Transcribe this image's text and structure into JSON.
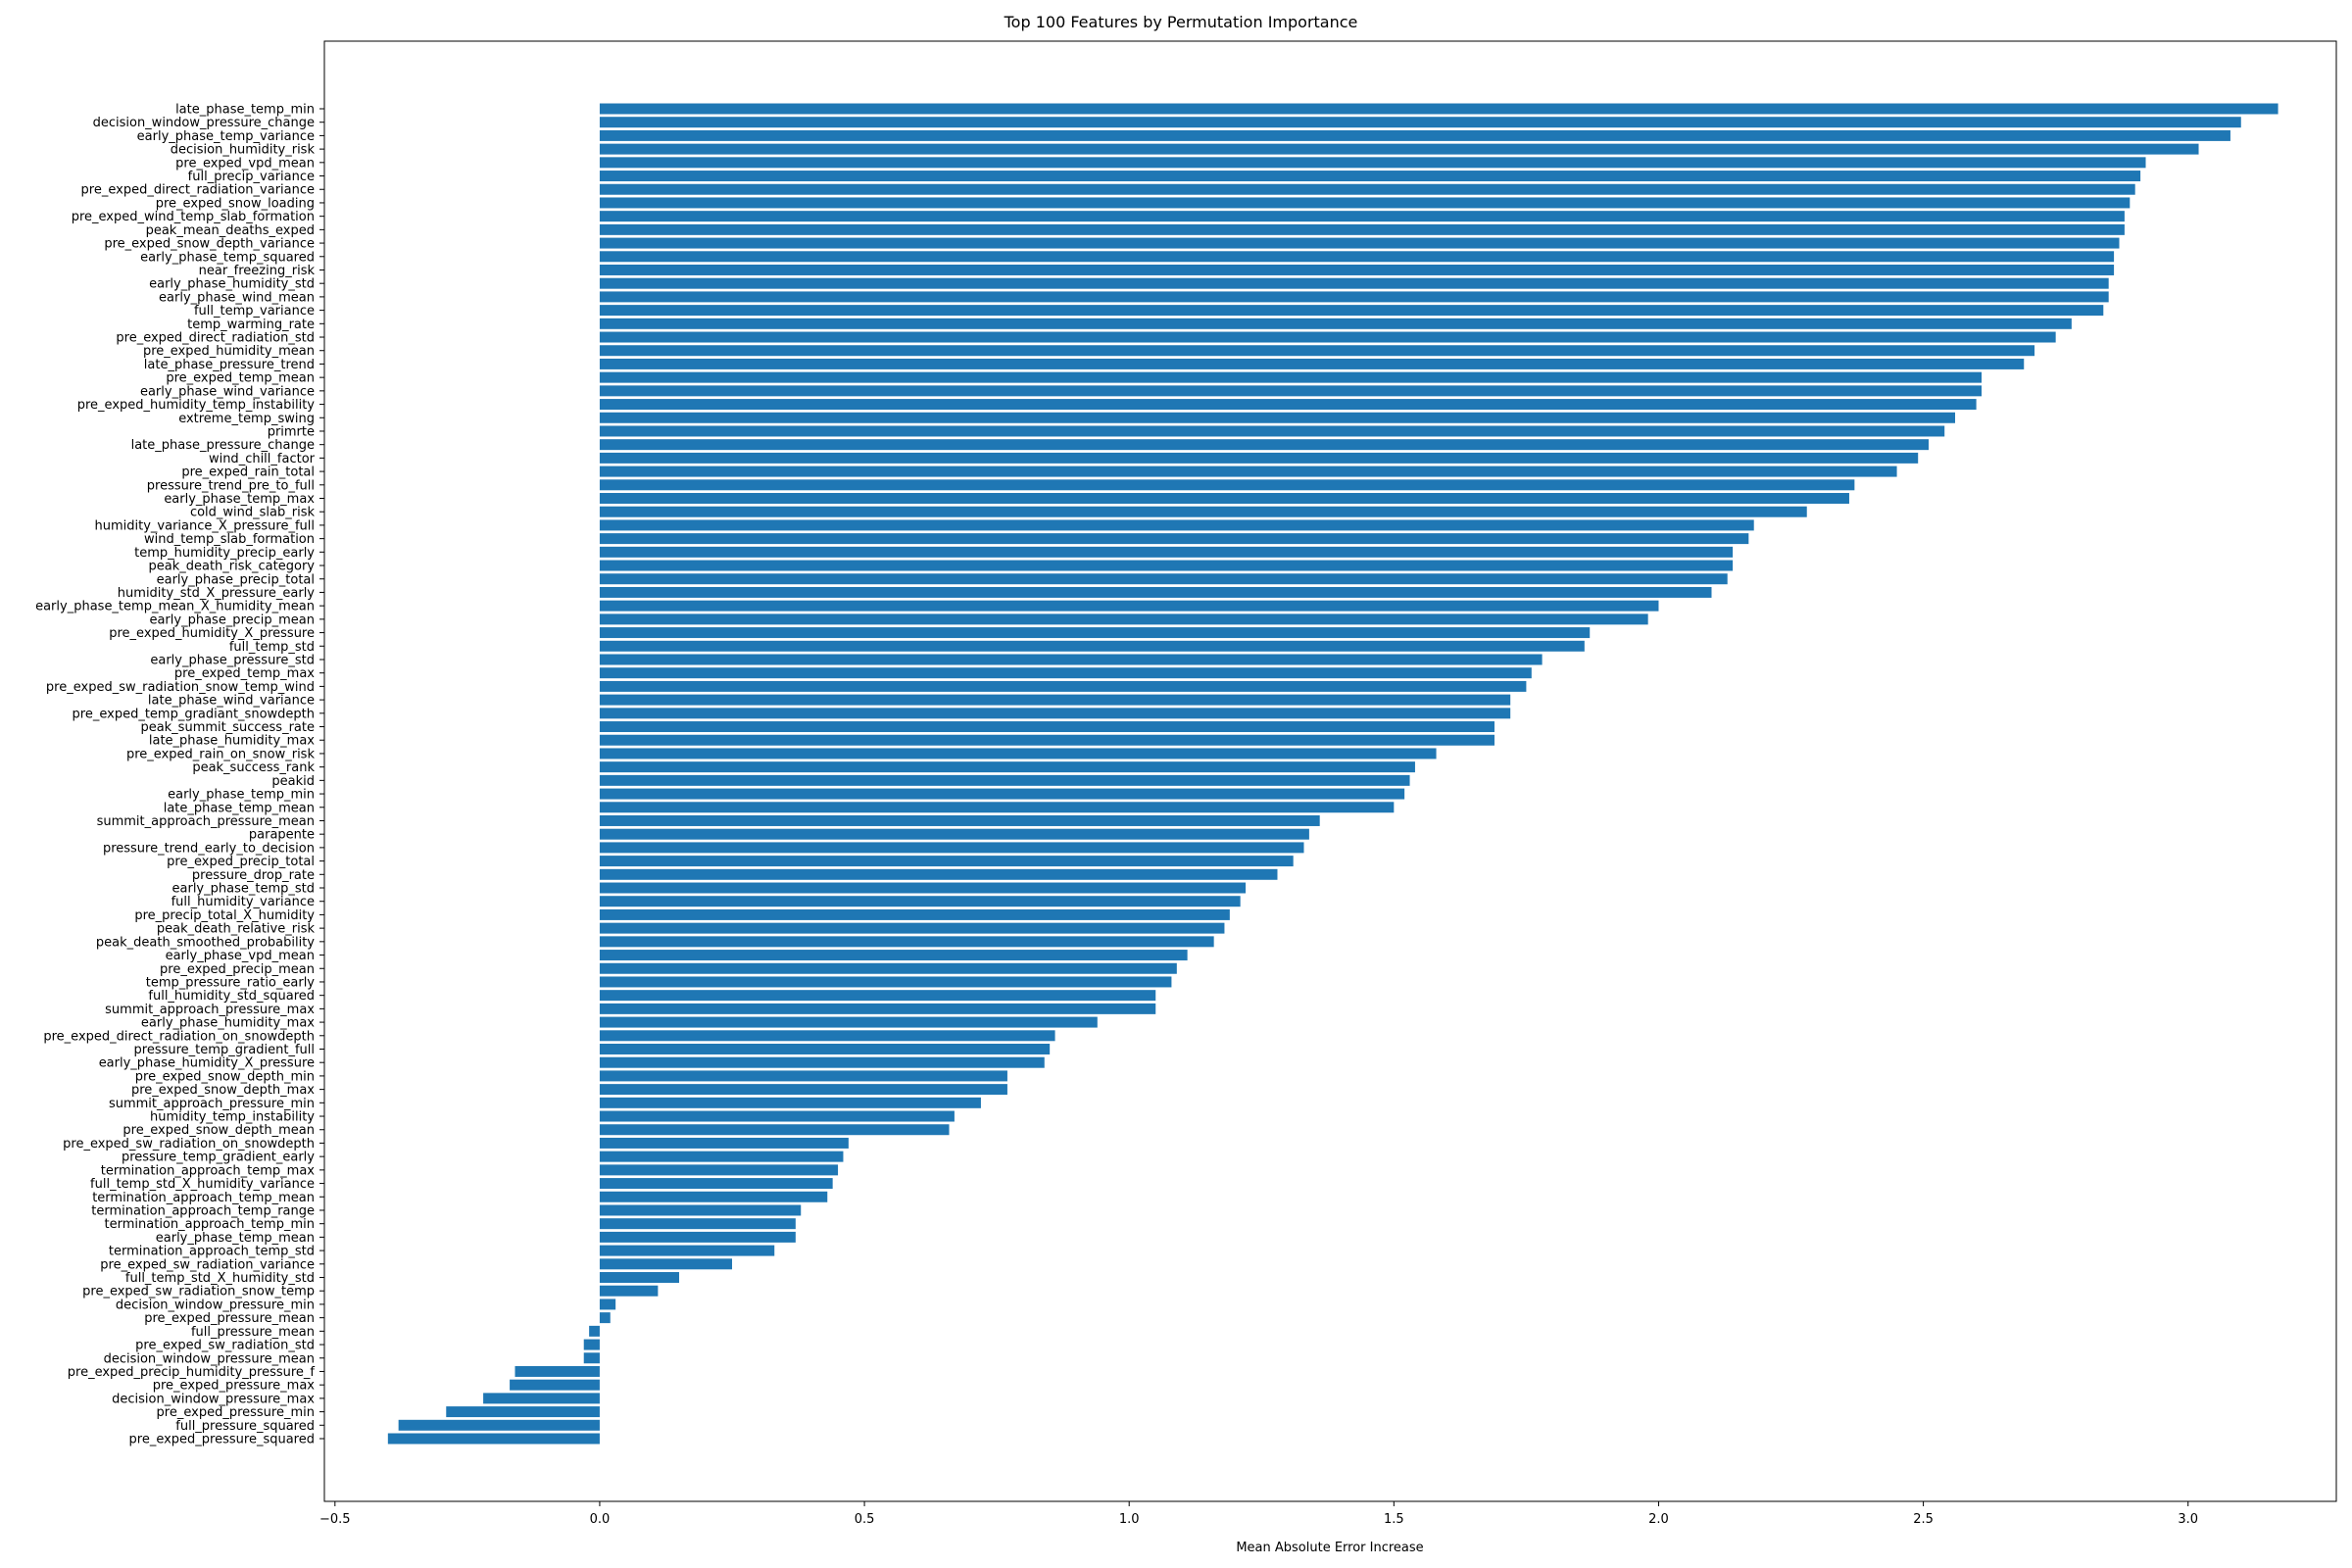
{
  "chart_data": {
    "type": "bar",
    "orientation": "horizontal",
    "title": "Top 100 Features by Permutation Importance",
    "xlabel": "Mean Absolute Error Increase",
    "ylabel": "",
    "xlim": [
      -0.52,
      3.28
    ],
    "xticks": [
      -0.5,
      0.0,
      0.5,
      1.0,
      1.5,
      2.0,
      2.5,
      3.0
    ],
    "xtick_labels": [
      "−0.5",
      "0.0",
      "0.5",
      "1.0",
      "1.5",
      "2.0",
      "2.5",
      "3.0"
    ],
    "grid": false,
    "bar_color": "#1f77b4",
    "categories": [
      "late_phase_temp_min",
      "decision_window_pressure_change",
      "early_phase_temp_variance",
      "decision_humidity_risk",
      "pre_exped_vpd_mean",
      "full_precip_variance",
      "pre_exped_direct_radiation_variance",
      "pre_exped_snow_loading",
      "pre_exped_wind_temp_slab_formation",
      "peak_mean_deaths_exped",
      "pre_exped_snow_depth_variance",
      "early_phase_temp_squared",
      "near_freezing_risk",
      "early_phase_humidity_std",
      "early_phase_wind_mean",
      "full_temp_variance",
      "temp_warming_rate",
      "pre_exped_direct_radiation_std",
      "pre_exped_humidity_mean",
      "late_phase_pressure_trend",
      "pre_exped_temp_mean",
      "early_phase_wind_variance",
      "pre_exped_humidity_temp_instability",
      "extreme_temp_swing",
      "primrte",
      "late_phase_pressure_change",
      "wind_chill_factor",
      "pre_exped_rain_total",
      "pressure_trend_pre_to_full",
      "early_phase_temp_max",
      "cold_wind_slab_risk",
      "humidity_variance_X_pressure_full",
      "wind_temp_slab_formation",
      "temp_humidity_precip_early",
      "peak_death_risk_category",
      "early_phase_precip_total",
      "humidity_std_X_pressure_early",
      "early_phase_temp_mean_X_humidity_mean",
      "early_phase_precip_mean",
      "pre_exped_humidity_X_pressure",
      "full_temp_std",
      "early_phase_pressure_std",
      "pre_exped_temp_max",
      "pre_exped_sw_radiation_snow_temp_wind",
      "late_phase_wind_variance",
      "pre_exped_temp_gradiant_snowdepth",
      "peak_summit_success_rate",
      "late_phase_humidity_max",
      "pre_exped_rain_on_snow_risk",
      "peak_success_rank",
      "peakid",
      "early_phase_temp_min",
      "late_phase_temp_mean",
      "summit_approach_pressure_mean",
      "parapente",
      "pressure_trend_early_to_decision",
      "pre_exped_precip_total",
      "pressure_drop_rate",
      "early_phase_temp_std",
      "full_humidity_variance",
      "pre_precip_total_X_humidity",
      "peak_death_relative_risk",
      "peak_death_smoothed_probability",
      "early_phase_vpd_mean",
      "pre_exped_precip_mean",
      "temp_pressure_ratio_early",
      "full_humidity_std_squared",
      "summit_approach_pressure_max",
      "early_phase_humidity_max",
      "pre_exped_direct_radiation_on_snowdepth",
      "pressure_temp_gradient_full",
      "early_phase_humidity_X_pressure",
      "pre_exped_snow_depth_min",
      "pre_exped_snow_depth_max",
      "summit_approach_pressure_min",
      "humidity_temp_instability",
      "pre_exped_snow_depth_mean",
      "pre_exped_sw_radiation_on_snowdepth",
      "pressure_temp_gradient_early",
      "termination_approach_temp_max",
      "full_temp_std_X_humidity_variance",
      "termination_approach_temp_mean",
      "termination_approach_temp_range",
      "termination_approach_temp_min",
      "early_phase_temp_mean",
      "termination_approach_temp_std",
      "pre_exped_sw_radiation_variance",
      "full_temp_std_X_humidity_std",
      "pre_exped_sw_radiation_snow_temp",
      "decision_window_pressure_min",
      "pre_exped_pressure_mean",
      "full_pressure_mean",
      "pre_exped_sw_radiation_std",
      "decision_window_pressure_mean",
      "pre_exped_precip_humidity_pressure_f",
      "pre_exped_pressure_max",
      "decision_window_pressure_max",
      "pre_exped_pressure_min",
      "full_pressure_squared",
      "pre_exped_pressure_squared"
    ],
    "values": [
      3.17,
      3.1,
      3.08,
      3.02,
      2.92,
      2.91,
      2.9,
      2.89,
      2.88,
      2.88,
      2.87,
      2.86,
      2.86,
      2.85,
      2.85,
      2.84,
      2.78,
      2.75,
      2.71,
      2.69,
      2.61,
      2.61,
      2.6,
      2.56,
      2.54,
      2.51,
      2.49,
      2.45,
      2.37,
      2.36,
      2.28,
      2.18,
      2.17,
      2.14,
      2.14,
      2.13,
      2.1,
      2.0,
      1.98,
      1.87,
      1.86,
      1.78,
      1.76,
      1.75,
      1.72,
      1.72,
      1.69,
      1.69,
      1.58,
      1.54,
      1.53,
      1.52,
      1.5,
      1.36,
      1.34,
      1.33,
      1.31,
      1.28,
      1.22,
      1.21,
      1.19,
      1.18,
      1.16,
      1.11,
      1.09,
      1.08,
      1.05,
      1.05,
      0.94,
      0.86,
      0.85,
      0.84,
      0.77,
      0.77,
      0.72,
      0.67,
      0.66,
      0.47,
      0.46,
      0.45,
      0.44,
      0.43,
      0.38,
      0.37,
      0.37,
      0.33,
      0.25,
      0.15,
      0.11,
      0.03,
      0.02,
      -0.02,
      -0.03,
      -0.03,
      -0.16,
      -0.17,
      -0.22,
      -0.29,
      -0.38,
      -0.4
    ]
  }
}
